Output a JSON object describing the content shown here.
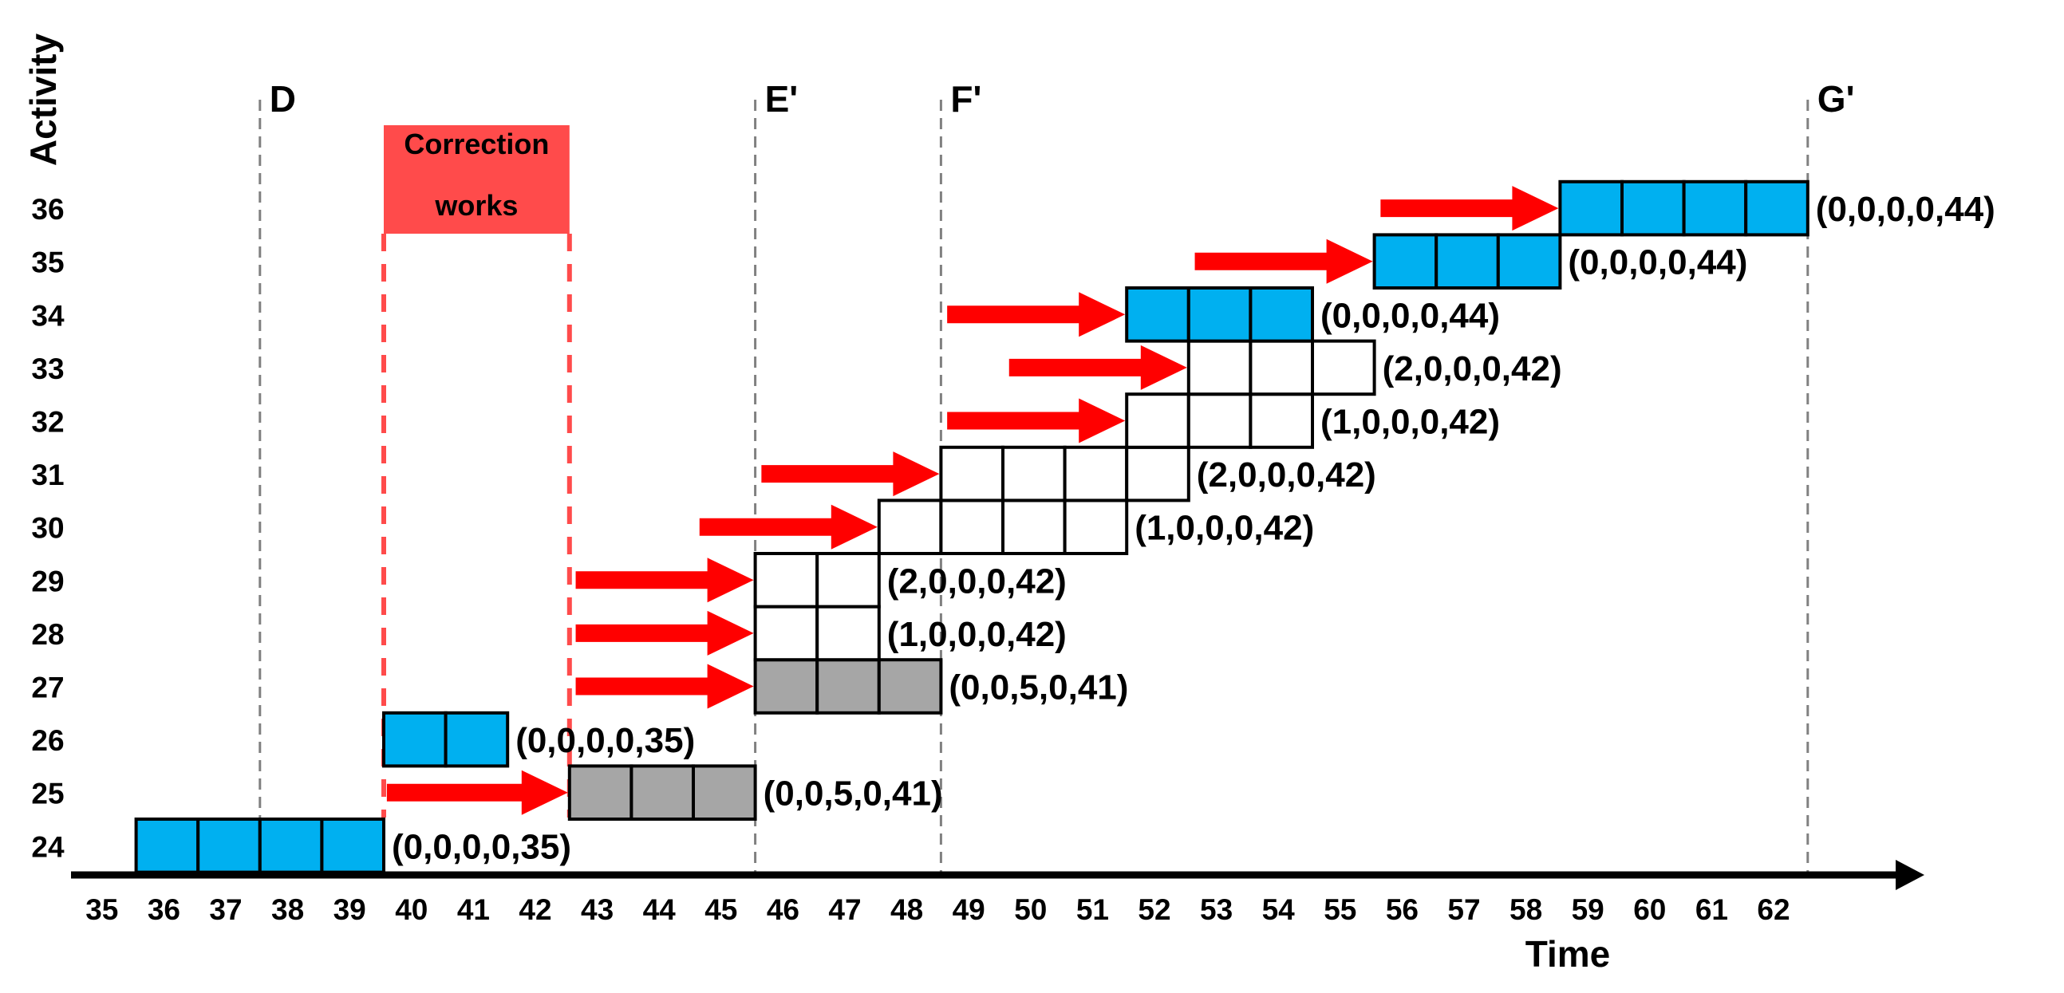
{
  "chart_data": {
    "type": "gantt",
    "title": "",
    "xlabel": "Time",
    "ylabel": "Activity",
    "x_ticks": [
      35,
      36,
      37,
      38,
      39,
      40,
      41,
      42,
      43,
      44,
      45,
      46,
      47,
      48,
      49,
      50,
      51,
      52,
      53,
      54,
      55,
      56,
      57,
      58,
      59,
      60,
      61,
      62
    ],
    "y_ticks": [
      24,
      25,
      26,
      27,
      28,
      29,
      30,
      31,
      32,
      33,
      34,
      35,
      36
    ],
    "colors": {
      "blue": "#00B0F0",
      "gray": "#A6A6A6",
      "white": "#FFFFFF",
      "arrow": "#FF0000",
      "correction": "#FF4B4B",
      "dashed": "#808080"
    },
    "milestones": [
      {
        "label": "D",
        "time": 38
      },
      {
        "label": "E'",
        "time": 46
      },
      {
        "label": "F'",
        "time": 49
      },
      {
        "label": "G'",
        "time": 63
      }
    ],
    "correction_works": {
      "label_line1": "Correction",
      "label_line2": "works",
      "start": 40,
      "end": 43
    },
    "bars": [
      {
        "activity": 24,
        "start": 36,
        "duration": 4,
        "color": "blue",
        "label": "(0,0,0,0,35)",
        "arrow_from": null
      },
      {
        "activity": 25,
        "start": 43,
        "duration": 3,
        "color": "gray",
        "label": "(0,0,5,0,41)",
        "arrow_from": 40.05
      },
      {
        "activity": 26,
        "start": 40,
        "duration": 2,
        "color": "blue",
        "label": "(0,0,0,0,35)",
        "arrow_from": null
      },
      {
        "activity": 27,
        "start": 46,
        "duration": 3,
        "color": "gray",
        "label": "(0,0,5,0,41)",
        "arrow_from": 43.1
      },
      {
        "activity": 28,
        "start": 46,
        "duration": 2,
        "color": "white",
        "label": "(1,0,0,0,42)",
        "arrow_from": 43.1
      },
      {
        "activity": 29,
        "start": 46,
        "duration": 2,
        "color": "white",
        "label": "(2,0,0,0,42)",
        "arrow_from": 43.1
      },
      {
        "activity": 30,
        "start": 48,
        "duration": 4,
        "color": "white",
        "label": "(1,0,0,0,42)",
        "arrow_from": 45.1
      },
      {
        "activity": 31,
        "start": 49,
        "duration": 4,
        "color": "white",
        "label": "(2,0,0,0,42)",
        "arrow_from": 46.1
      },
      {
        "activity": 32,
        "start": 52,
        "duration": 3,
        "color": "white",
        "label": "(1,0,0,0,42)",
        "arrow_from": 49.1
      },
      {
        "activity": 33,
        "start": 53,
        "duration": 3,
        "color": "white",
        "label": "(2,0,0,0,42)",
        "arrow_from": 50.1
      },
      {
        "activity": 34,
        "start": 52,
        "duration": 3,
        "color": "blue",
        "label": "(0,0,0,0,44)",
        "arrow_from": 49.1
      },
      {
        "activity": 35,
        "start": 56,
        "duration": 3,
        "color": "blue",
        "label": "(0,0,0,0,44)",
        "arrow_from": 53.1
      },
      {
        "activity": 36,
        "start": 59,
        "duration": 4,
        "color": "blue",
        "label": "(0,0,0,0,44)",
        "arrow_from": 56.1
      }
    ]
  },
  "labels": {
    "x_axis_title": "Time",
    "y_axis_title": "Activity",
    "correction_line1": "Correction",
    "correction_line2": "works"
  }
}
